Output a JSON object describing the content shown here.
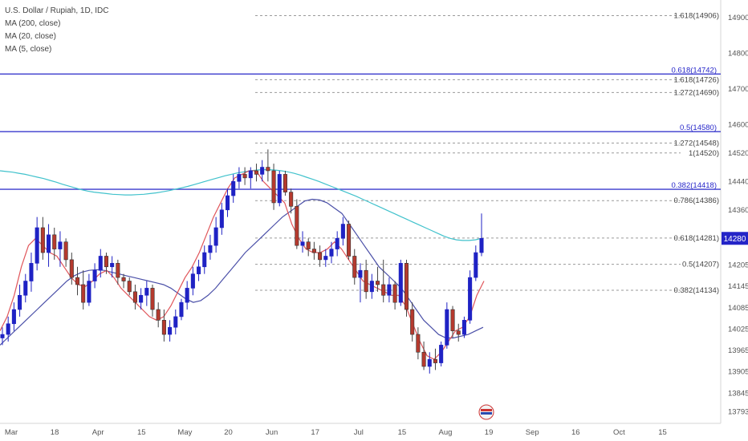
{
  "legend": {
    "title": "U.S. Dollar / Rupiah, 1D, IDC",
    "ma200": "MA (200, close)",
    "ma20": "MA (20, close)",
    "ma5": "MA (5, close)"
  },
  "price_tag": "14280",
  "colors": {
    "bull": "#1f22c4",
    "bear": "#b53a2e",
    "ma200": "#41c2cc",
    "ma20": "#4b50a8",
    "ma5": "#e0555a",
    "hline": "#3a3acd",
    "fib": "#9a9a9a",
    "tag": "#2424c7"
  },
  "chart_data": {
    "type": "candlestick",
    "ylim": [
      13760,
      14950
    ],
    "y_ticks": [
      "14900",
      "14800",
      "14700",
      "14600",
      "14520",
      "14440",
      "14360",
      "14280",
      "14205",
      "14145",
      "14085",
      "14025",
      "13965",
      "13905",
      "13845",
      "13793"
    ],
    "x_ticks": [
      "Mar",
      "18",
      "Apr",
      "15",
      "May",
      "20",
      "Jun",
      "17",
      "Jul",
      "15",
      "Aug",
      "19",
      "Sep",
      "16",
      "Oct",
      "15"
    ],
    "horizontal_lines": [
      {
        "label": "0.618(14742)",
        "value": 14742
      },
      {
        "label": "0.5(14580)",
        "value": 14580
      },
      {
        "label": "0.382(14418)",
        "value": 14418
      }
    ],
    "fib_levels": [
      {
        "label": "1.618(14906)",
        "value": 14906
      },
      {
        "label": "1.618(14726)",
        "value": 14726
      },
      {
        "label": "1.272(14690)",
        "value": 14690
      },
      {
        "label": "1.272(14548)",
        "value": 14548
      },
      {
        "label": "1(14520)",
        "value": 14520
      },
      {
        "label": "0.786(14386)",
        "value": 14386
      },
      {
        "label": "0.618(14281)",
        "value": 14281
      },
      {
        "label": "0.5(14207)",
        "value": 14207
      },
      {
        "label": "0.382(14134)",
        "value": 14134
      }
    ],
    "last_price": 14280,
    "ohlc": [
      [
        14000,
        14030,
        13980,
        14010
      ],
      [
        14010,
        14060,
        13990,
        14040
      ],
      [
        14040,
        14100,
        14020,
        14080
      ],
      [
        14080,
        14150,
        14060,
        14120
      ],
      [
        14120,
        14180,
        14100,
        14160
      ],
      [
        14160,
        14240,
        14130,
        14210
      ],
      [
        14210,
        14340,
        14190,
        14310
      ],
      [
        14310,
        14340,
        14220,
        14240
      ],
      [
        14240,
        14320,
        14200,
        14290
      ],
      [
        14290,
        14310,
        14220,
        14250
      ],
      [
        14250,
        14300,
        14200,
        14270
      ],
      [
        14270,
        14280,
        14200,
        14220
      ],
      [
        14220,
        14240,
        14150,
        14170
      ],
      [
        14170,
        14200,
        14120,
        14150
      ],
      [
        14150,
        14190,
        14080,
        14100
      ],
      [
        14100,
        14180,
        14090,
        14160
      ],
      [
        14160,
        14210,
        14140,
        14190
      ],
      [
        14190,
        14250,
        14170,
        14230
      ],
      [
        14230,
        14240,
        14180,
        14200
      ],
      [
        14200,
        14230,
        14170,
        14210
      ],
      [
        14210,
        14220,
        14150,
        14170
      ],
      [
        14170,
        14180,
        14140,
        14160
      ],
      [
        14160,
        14170,
        14120,
        14130
      ],
      [
        14130,
        14150,
        14080,
        14100
      ],
      [
        14100,
        14140,
        14080,
        14120
      ],
      [
        14120,
        14160,
        14090,
        14140
      ],
      [
        14140,
        14150,
        14060,
        14080
      ],
      [
        14080,
        14100,
        14030,
        14050
      ],
      [
        14050,
        14080,
        13990,
        14010
      ],
      [
        14010,
        14050,
        13990,
        14030
      ],
      [
        14030,
        14080,
        14010,
        14060
      ],
      [
        14060,
        14110,
        14050,
        14100
      ],
      [
        14100,
        14160,
        14080,
        14140
      ],
      [
        14140,
        14200,
        14120,
        14180
      ],
      [
        14180,
        14220,
        14160,
        14200
      ],
      [
        14200,
        14260,
        14180,
        14240
      ],
      [
        14240,
        14290,
        14220,
        14260
      ],
      [
        14260,
        14340,
        14240,
        14310
      ],
      [
        14310,
        14380,
        14290,
        14360
      ],
      [
        14360,
        14420,
        14340,
        14400
      ],
      [
        14400,
        14460,
        14380,
        14440
      ],
      [
        14440,
        14480,
        14420,
        14460
      ],
      [
        14460,
        14480,
        14430,
        14450
      ],
      [
        14450,
        14480,
        14420,
        14470
      ],
      [
        14470,
        14490,
        14440,
        14460
      ],
      [
        14460,
        14500,
        14440,
        14480
      ],
      [
        14480,
        14530,
        14440,
        14470
      ],
      [
        14470,
        14490,
        14360,
        14380
      ],
      [
        14380,
        14470,
        14370,
        14460
      ],
      [
        14460,
        14470,
        14400,
        14410
      ],
      [
        14410,
        14420,
        14350,
        14370
      ],
      [
        14370,
        14390,
        14250,
        14260
      ],
      [
        14260,
        14300,
        14240,
        14270
      ],
      [
        14270,
        14280,
        14230,
        14250
      ],
      [
        14250,
        14270,
        14220,
        14240
      ],
      [
        14240,
        14260,
        14200,
        14220
      ],
      [
        14220,
        14250,
        14200,
        14230
      ],
      [
        14230,
        14270,
        14210,
        14250
      ],
      [
        14250,
        14300,
        14230,
        14280
      ],
      [
        14280,
        14340,
        14260,
        14320
      ],
      [
        14320,
        14330,
        14220,
        14230
      ],
      [
        14230,
        14250,
        14150,
        14170
      ],
      [
        14170,
        14210,
        14100,
        14190
      ],
      [
        14190,
        14220,
        14110,
        14130
      ],
      [
        14130,
        14180,
        14110,
        14160
      ],
      [
        14160,
        14200,
        14130,
        14150
      ],
      [
        14150,
        14220,
        14100,
        14120
      ],
      [
        14120,
        14170,
        14100,
        14150
      ],
      [
        14150,
        14160,
        14080,
        14100
      ],
      [
        14100,
        14220,
        14090,
        14210
      ],
      [
        14210,
        14220,
        14060,
        14080
      ],
      [
        14080,
        14100,
        13990,
        14010
      ],
      [
        14010,
        14030,
        13940,
        13960
      ],
      [
        13960,
        13990,
        13910,
        13920
      ],
      [
        13920,
        13960,
        13900,
        13940
      ],
      [
        13940,
        13970,
        13910,
        13930
      ],
      [
        13930,
        13990,
        13920,
        13980
      ],
      [
        13980,
        14100,
        13970,
        14080
      ],
      [
        14080,
        14090,
        14000,
        14020
      ],
      [
        14020,
        14040,
        13990,
        14010
      ],
      [
        14010,
        14060,
        14000,
        14050
      ],
      [
        14050,
        14190,
        14040,
        14170
      ],
      [
        14170,
        14260,
        14160,
        14240
      ],
      [
        14240,
        14350,
        14230,
        14280
      ]
    ],
    "ma200": [
      14470,
      14468,
      14466,
      14463,
      14460,
      14456,
      14452,
      14448,
      14443,
      14438,
      14432,
      14427,
      14422,
      14417,
      14413,
      14410,
      14408,
      14406,
      14404,
      14403,
      14402,
      14402,
      14403,
      14404,
      14406,
      14408,
      14411,
      14414,
      14418,
      14422,
      14426,
      14431,
      14436,
      14441,
      14446,
      14451,
      14456,
      14460,
      14464,
      14467,
      14470,
      14472,
      14473,
      14473,
      14472,
      14470,
      14467,
      14463,
      14458,
      14452,
      14446,
      14440,
      14433,
      14426,
      14419,
      14412,
      14405,
      14398,
      14390,
      14382,
      14374,
      14366,
      14358,
      14350,
      14342,
      14334,
      14326,
      14318,
      14310,
      14302,
      14294,
      14286,
      14280,
      14276,
      14274,
      14274,
      14276,
      14280
    ],
    "ma20": [
      13980,
      14000,
      14020,
      14040,
      14060,
      14080,
      14100,
      14120,
      14140,
      14160,
      14175,
      14185,
      14190,
      14192,
      14190,
      14185,
      14180,
      14175,
      14170,
      14165,
      14160,
      14155,
      14150,
      14140,
      14125,
      14110,
      14100,
      14105,
      14120,
      14140,
      14165,
      14190,
      14215,
      14240,
      14260,
      14280,
      14300,
      14320,
      14340,
      14355,
      14370,
      14385,
      14390,
      14388,
      14380,
      14365,
      14350,
      14320,
      14290,
      14260,
      14230,
      14200,
      14180,
      14160,
      14140,
      14110,
      14080,
      14050,
      14030,
      14010,
      14000,
      14000,
      14005,
      14010,
      14020,
      14030
    ],
    "ma5": [
      14020,
      14060,
      14120,
      14200,
      14260,
      14280,
      14260,
      14240,
      14230,
      14200,
      14170,
      14150,
      14145,
      14160,
      14180,
      14190,
      14170,
      14140,
      14120,
      14100,
      14080,
      14060,
      14050,
      14060,
      14090,
      14130,
      14170,
      14200,
      14240,
      14290,
      14340,
      14380,
      14420,
      14450,
      14460,
      14470,
      14470,
      14440,
      14420,
      14400,
      14380,
      14320,
      14280,
      14250,
      14240,
      14240,
      14250,
      14270,
      14250,
      14220,
      14190,
      14160,
      14150,
      14140,
      14130,
      14120,
      14120,
      14090,
      14040,
      13990,
      13950,
      13940,
      13960,
      13990,
      14020,
      14030,
      14060,
      14120,
      14160
    ]
  }
}
